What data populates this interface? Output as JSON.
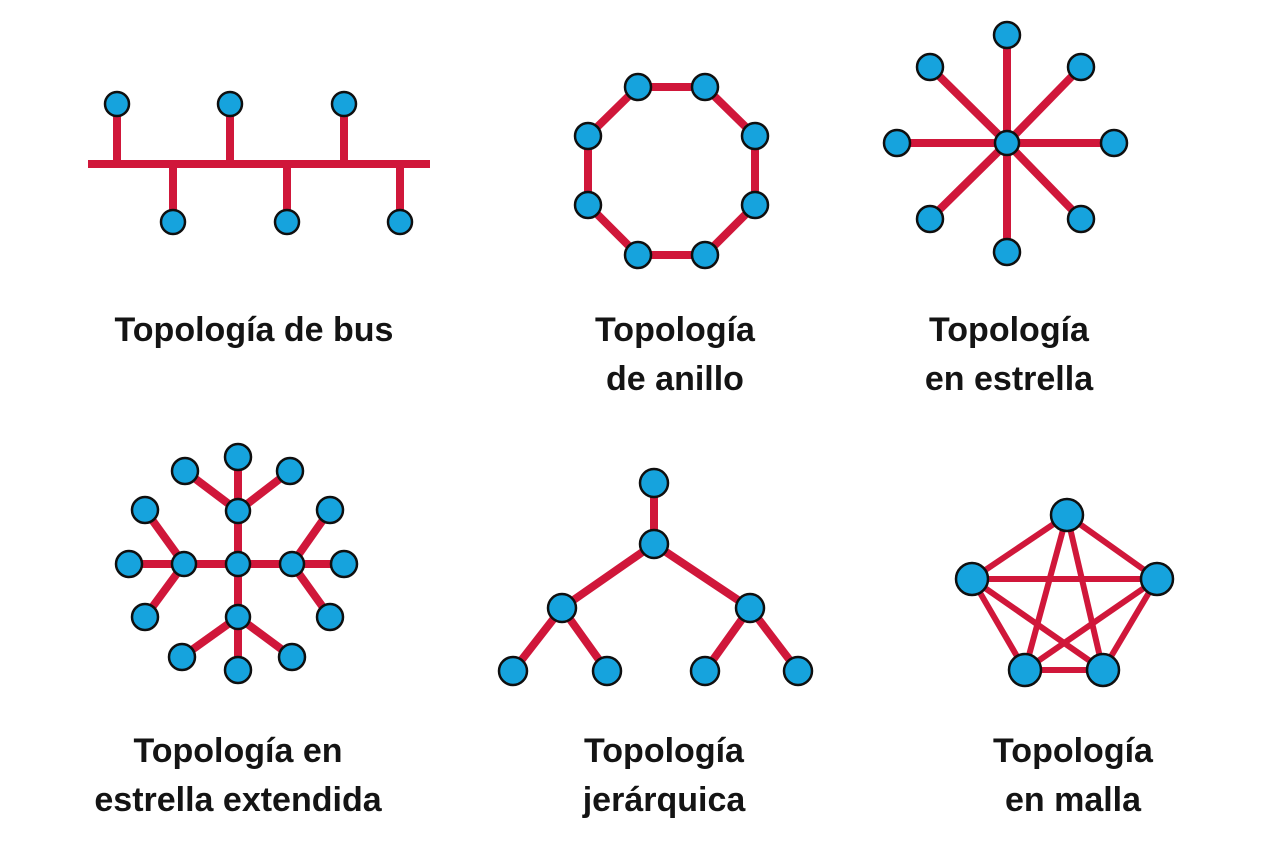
{
  "diagrams": [
    {
      "id": "bus",
      "lines": [
        "Topología de bus"
      ]
    },
    {
      "id": "ring",
      "lines": [
        "Topología",
        "de anillo"
      ]
    },
    {
      "id": "star",
      "lines": [
        "Topología",
        "en estrella"
      ]
    },
    {
      "id": "extended-star",
      "lines": [
        "Topología en",
        "estrella extendida"
      ]
    },
    {
      "id": "hierarchical",
      "lines": [
        "Topología",
        "jerárquica"
      ]
    },
    {
      "id": "mesh",
      "lines": [
        "Topología",
        "en malla"
      ]
    }
  ],
  "colors": {
    "link": "#d0173a",
    "node": "#16a3dd",
    "node_outline": "#0f0f0f",
    "text": "#141414"
  }
}
